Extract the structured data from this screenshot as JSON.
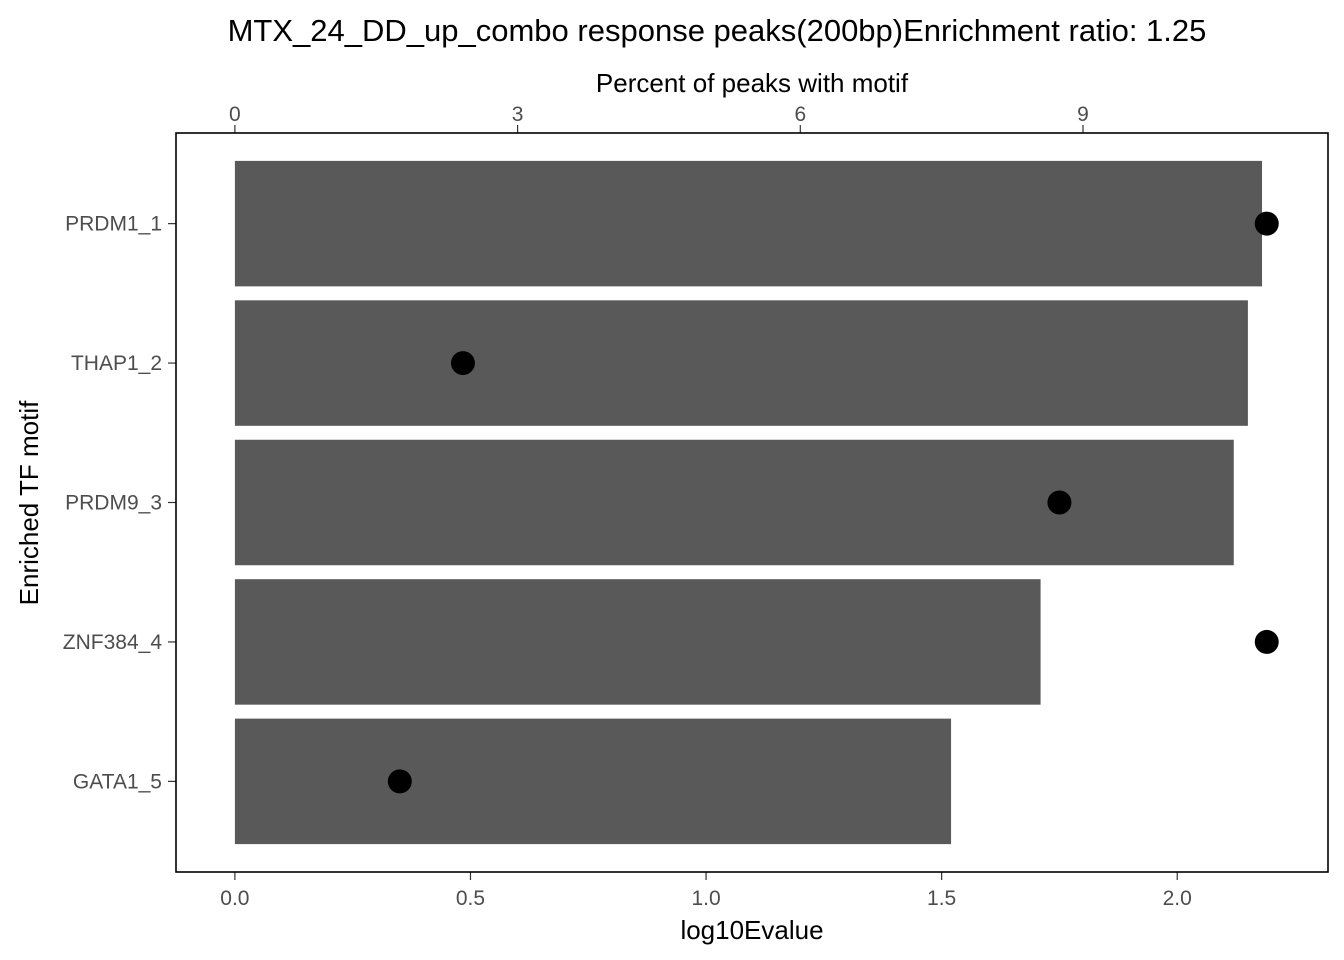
{
  "chart_data": {
    "type": "bar",
    "orientation": "horizontal",
    "title": "MTX_24_DD_up_combo response peaks(200bp)Enrichment ratio: 1.25",
    "ylabel": "Enriched TF motif",
    "categories": [
      "PRDM1_1",
      "THAP1_2",
      "PRDM9_3",
      "ZNF384_4",
      "GATA1_5"
    ],
    "bottom_axis": {
      "label": "log10Evalue",
      "lim": [
        -0.125,
        2.32
      ],
      "ticks": [
        0.0,
        0.5,
        1.0,
        1.5,
        2.0
      ],
      "tick_labels": [
        "0.0",
        "0.5",
        "1.0",
        "1.5",
        "2.0"
      ]
    },
    "top_axis": {
      "label": "Percent of peaks with motif",
      "lim": [
        -0.625,
        11.6
      ],
      "ticks": [
        0,
        3,
        6,
        9
      ],
      "tick_labels": [
        "0",
        "3",
        "6",
        "9"
      ]
    },
    "series": [
      {
        "name": "log10Evalue",
        "kind": "bar",
        "axis": "bottom",
        "color": "#595959",
        "values": [
          2.18,
          2.15,
          2.12,
          1.71,
          1.52
        ]
      },
      {
        "name": "Percent of peaks with motif",
        "kind": "point",
        "axis": "top",
        "color": "#000000",
        "values": [
          10.95,
          2.42,
          8.75,
          10.95,
          1.75
        ]
      }
    ],
    "grid": false,
    "legend": "none"
  }
}
